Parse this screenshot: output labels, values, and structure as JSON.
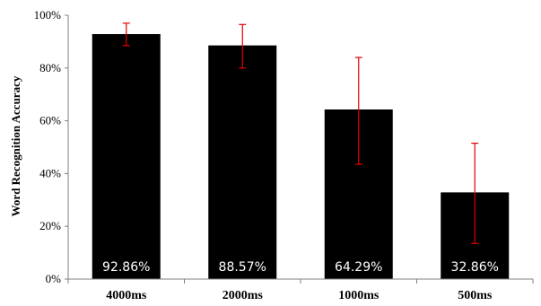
{
  "chart_data": {
    "type": "bar",
    "title": "",
    "xlabel": "",
    "ylabel": "Word Recognition Accuracy",
    "ylim": [
      0,
      100
    ],
    "yticks": [
      0,
      20,
      40,
      60,
      80,
      100
    ],
    "ytick_labels": [
      "0%",
      "20%",
      "40%",
      "60%",
      "80%",
      "100%"
    ],
    "categories": [
      "4000ms",
      "2000ms",
      "1000ms",
      "500ms"
    ],
    "values": [
      92.86,
      88.57,
      64.29,
      32.86
    ],
    "data_labels": [
      "92.86%",
      "88.57%",
      "64.29%",
      "32.86%"
    ],
    "error_low": [
      88.5,
      80,
      43.5,
      13.5
    ],
    "error_high": [
      97,
      96.5,
      84,
      51.5
    ],
    "grid": false,
    "legend": "none",
    "colors": {
      "bar": "#000000",
      "error_bar": "#e00000",
      "axis": "#808080",
      "data_label": "#ffffff"
    }
  }
}
